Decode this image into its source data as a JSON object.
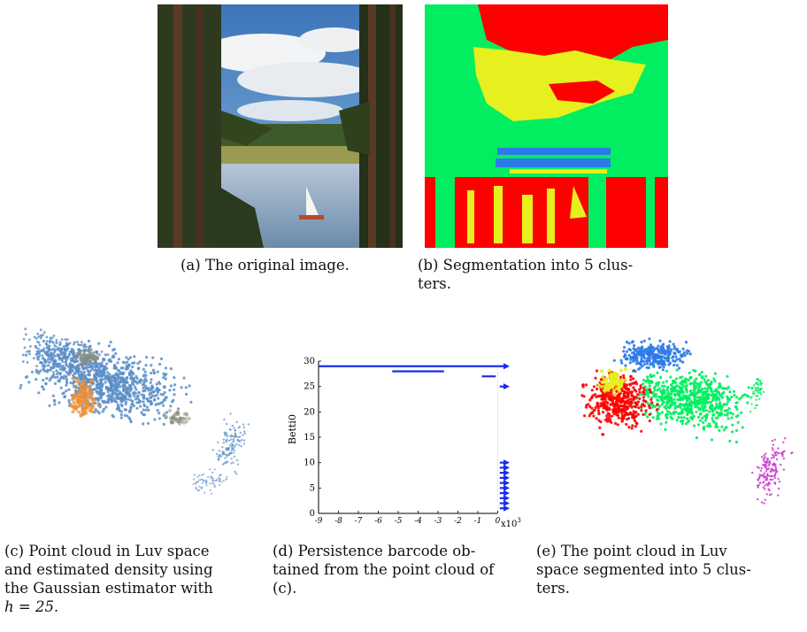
{
  "captions": {
    "a": "(a) The original image.",
    "b": "(b) Segmentation into 5 clusters.",
    "c": "(c) Point cloud in Luv space and estimated density using the Gaussian estimator with h = 25.",
    "d": "(d) Persistence barcode obtained from the point cloud of (c).",
    "e": "(e) The point cloud in Luv space segmented into 5 clusters."
  },
  "caption_lines": {
    "a": [
      "(a) The original image."
    ],
    "b": [
      "(b) Segmentation into 5 clus-",
      "ters."
    ],
    "c": [
      "(c) Point cloud in Luv space",
      "and estimated density using",
      "the Gaussian estimator with",
      "h = 25."
    ],
    "d": [
      "(d) Persistence barcode ob-",
      "tained from the point cloud of",
      "(c)."
    ],
    "e": [
      "(e) The point cloud in Luv",
      "space segmented into 5 clus-",
      "ters."
    ]
  },
  "segmentation_colors": [
    "#ff0000",
    "#e6f01e",
    "#00ee60",
    "#2c7ae8",
    "#cc44cc"
  ],
  "density_colors": {
    "points": "#5a8ec8",
    "high_density": "#e8903a"
  },
  "chart_data": {
    "type": "barcode",
    "title": "",
    "ylabel": "Betti0",
    "xlabel": "",
    "x_multiplier_label": "x10",
    "x_multiplier_exp": "3",
    "xlim": [
      -9,
      0.6
    ],
    "ylim": [
      0,
      30
    ],
    "xticks": [
      "-9",
      "-8",
      "-7",
      "-6",
      "-5",
      "-4",
      "-3",
      "-2",
      "-1",
      "0"
    ],
    "yticks": [
      "0",
      "5",
      "10",
      "15",
      "20",
      "25",
      "30"
    ],
    "bar_color": "#1a2ee8",
    "bars": [
      {
        "y": 29,
        "x_start": -9,
        "x_end": 0.6,
        "infinite": true
      },
      {
        "y": 28,
        "x_start": -5.3,
        "x_end": -2.7,
        "infinite": false
      },
      {
        "y": 27,
        "x_start": -0.8,
        "x_end": -0.1,
        "infinite": false
      },
      {
        "y": 25,
        "x_start": 0.1,
        "x_end": 0.6,
        "infinite": true
      },
      {
        "y": 10,
        "x_start": 0.1,
        "x_end": 0.6,
        "infinite": true
      },
      {
        "y": 9,
        "x_start": 0.1,
        "x_end": 0.6,
        "infinite": true
      },
      {
        "y": 8,
        "x_start": 0.1,
        "x_end": 0.6,
        "infinite": true
      },
      {
        "y": 7,
        "x_start": 0.1,
        "x_end": 0.6,
        "infinite": true
      },
      {
        "y": 6,
        "x_start": 0.1,
        "x_end": 0.6,
        "infinite": true
      },
      {
        "y": 5,
        "x_start": 0.1,
        "x_end": 0.6,
        "infinite": true
      },
      {
        "y": 4,
        "x_start": 0.1,
        "x_end": 0.6,
        "infinite": true
      },
      {
        "y": 3,
        "x_start": 0.1,
        "x_end": 0.6,
        "infinite": true
      },
      {
        "y": 2,
        "x_start": 0.1,
        "x_end": 0.6,
        "infinite": true
      },
      {
        "y": 1,
        "x_start": 0.1,
        "x_end": 0.6,
        "infinite": true
      }
    ]
  }
}
